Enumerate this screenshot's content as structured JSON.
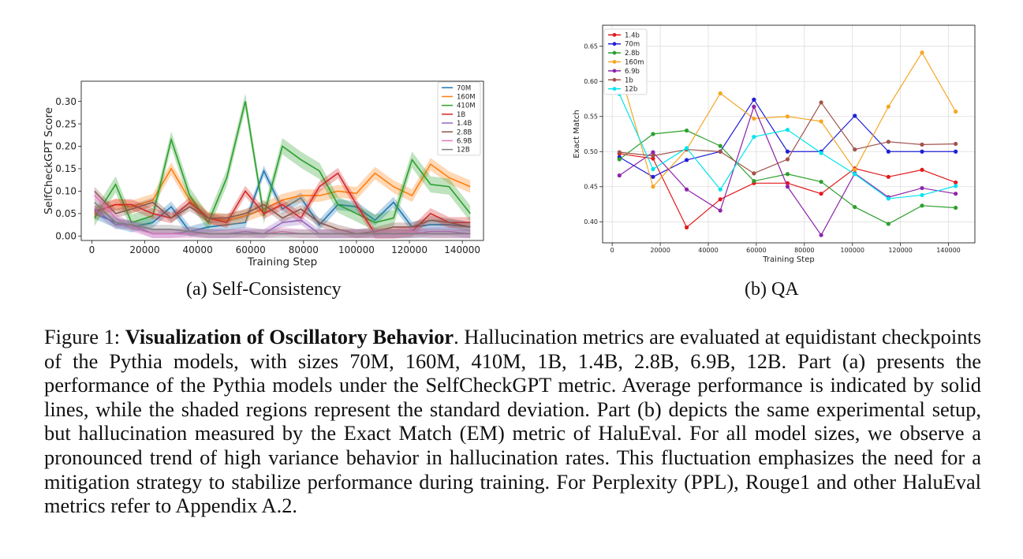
{
  "figure": {
    "subcaption_a": "(a) Self-Consistency",
    "subcaption_b": "(b) QA",
    "caption_label": "Figure 1:",
    "caption_title": "Visualization of Oscillatory Behavior",
    "caption_body": ". Hallucination metrics are evaluated at equidistant checkpoints of the Pythia models, with sizes 70M, 160M, 410M, 1B, 1.4B, 2.8B, 6.9B, 12B. Part (a) presents the performance of the Pythia models under the SelfCheckGPT metric. Average performance is indicated by solid lines, while the shaded regions represent the standard deviation. Part (b) depicts the same experimental setup, but hallucination measured by the Exact Match (EM) metric of HaluEval. For all model sizes, we observe a pronounced trend of high variance behavior in hallucination rates. This fluctuation emphasizes the need for a mitigation strategy to stabilize performance during training. For Perplexity (PPL), Rouge1 and other HaluEval metrics refer to Appendix A.2."
  },
  "chart_data": [
    {
      "type": "line",
      "xlabel": "Training Step",
      "ylabel": "SelfCheckGPT Score",
      "xlim": [
        -4000,
        148000
      ],
      "ylim": [
        -0.01,
        0.345
      ],
      "xticks": [
        0,
        20000,
        40000,
        60000,
        80000,
        100000,
        120000,
        140000
      ],
      "yticks": [
        0.0,
        0.05,
        0.1,
        0.15,
        0.2,
        0.25,
        0.3
      ],
      "ytick_labels": [
        "0.00",
        "0.05",
        "0.10",
        "0.15",
        "0.20",
        "0.25",
        "0.30"
      ],
      "grid": false,
      "legend": "top-right",
      "shaded_std": true,
      "x": [
        1000,
        9000,
        15000,
        23000,
        30000,
        37000,
        44000,
        51000,
        58000,
        65000,
        72000,
        79000,
        86000,
        93000,
        100000,
        107000,
        114000,
        121000,
        128000,
        135000,
        143000
      ],
      "series": [
        {
          "name": "70M",
          "color": "#1f77b4",
          "std": 0.012,
          "values": [
            0.05,
            0.03,
            0.02,
            0.03,
            0.065,
            0.01,
            0.02,
            0.025,
            0.03,
            0.145,
            0.06,
            0.085,
            0.025,
            0.07,
            0.065,
            0.035,
            0.075,
            0.02,
            0.025,
            0.025,
            0.02
          ]
        },
        {
          "name": "160M",
          "color": "#ff7f0e",
          "std": 0.014,
          "values": [
            0.05,
            0.07,
            0.065,
            0.08,
            0.15,
            0.08,
            0.04,
            0.035,
            0.045,
            0.06,
            0.08,
            0.09,
            0.09,
            0.1,
            0.095,
            0.14,
            0.11,
            0.09,
            0.16,
            0.13,
            0.11
          ]
        },
        {
          "name": "410M",
          "color": "#2ca02c",
          "std": 0.018,
          "values": [
            0.04,
            0.115,
            0.03,
            0.045,
            0.215,
            0.09,
            0.03,
            0.13,
            0.3,
            0.045,
            0.2,
            0.17,
            0.145,
            0.07,
            0.05,
            0.03,
            0.04,
            0.17,
            0.115,
            0.11,
            0.05
          ]
        },
        {
          "name": "1B",
          "color": "#d62728",
          "std": 0.012,
          "values": [
            0.055,
            0.07,
            0.07,
            0.05,
            0.04,
            0.075,
            0.04,
            0.03,
            0.1,
            0.05,
            0.07,
            0.04,
            0.11,
            0.14,
            0.07,
            0.005,
            0.005,
            0.01,
            0.05,
            0.03,
            0.03
          ]
        },
        {
          "name": "1.4B",
          "color": "#9467bd",
          "std": 0.01,
          "values": [
            0.06,
            0.025,
            0.025,
            0.005,
            0.005,
            0.01,
            0.005,
            0.005,
            0.01,
            0.005,
            0.03,
            0.035,
            0.005,
            0.005,
            0.005,
            0.005,
            0.005,
            0.005,
            0.01,
            0.01,
            0.005
          ]
        },
        {
          "name": "2.8B",
          "color": "#8c564b",
          "std": 0.01,
          "values": [
            0.1,
            0.05,
            0.06,
            0.075,
            0.04,
            0.065,
            0.04,
            0.04,
            0.05,
            0.07,
            0.04,
            0.06,
            0.03,
            0.015,
            0.005,
            0.01,
            0.02,
            0.02,
            0.035,
            0.03,
            0.02
          ]
        },
        {
          "name": "6.9B",
          "color": "#e377c2",
          "std": 0.01,
          "values": [
            0.09,
            0.04,
            0.02,
            0.005,
            0.005,
            0.005,
            0.005,
            0.005,
            0.005,
            0.005,
            0.01,
            0.005,
            0.005,
            0.005,
            0.005,
            0.005,
            0.005,
            0.01,
            0.005,
            0.005,
            0.005
          ]
        },
        {
          "name": "12B",
          "color": "#7f7f7f",
          "std": 0.01,
          "values": [
            0.075,
            0.03,
            0.025,
            0.015,
            0.015,
            0.01,
            0.005,
            0.005,
            0.005,
            0.005,
            0.005,
            0.005,
            0.005,
            0.005,
            0.005,
            0.005,
            0.005,
            0.005,
            0.005,
            0.005,
            0.005
          ]
        }
      ]
    },
    {
      "type": "line",
      "xlabel": "Training Step",
      "ylabel": "Exact Match",
      "xlim": [
        -4000,
        151000
      ],
      "ylim": [
        0.37,
        0.68
      ],
      "xticks": [
        0,
        20000,
        40000,
        60000,
        80000,
        100000,
        120000,
        140000
      ],
      "yticks": [
        0.4,
        0.45,
        0.5,
        0.55,
        0.6,
        0.65
      ],
      "ytick_labels": [
        "0.40",
        "0.45",
        "0.50",
        "0.55",
        "0.60",
        "0.65"
      ],
      "grid": true,
      "legend": "top-left",
      "markers": true,
      "x": [
        3000,
        17000,
        31000,
        45000,
        59000,
        73000,
        87000,
        101000,
        115000,
        129000,
        143000
      ],
      "series": [
        {
          "name": "1.4b",
          "color": "#e31a1c",
          "values": [
            0.497,
            0.49,
            0.392,
            0.432,
            0.455,
            0.455,
            0.44,
            0.476,
            0.464,
            0.474,
            0.456
          ]
        },
        {
          "name": "70m",
          "color": "#1f1fd6",
          "values": [
            0.492,
            0.464,
            0.488,
            0.5,
            0.574,
            0.5,
            0.5,
            0.551,
            0.5,
            0.5,
            0.5
          ]
        },
        {
          "name": "2.8b",
          "color": "#2ca02c",
          "values": [
            0.489,
            0.525,
            0.53,
            0.508,
            0.458,
            0.468,
            0.457,
            0.421,
            0.397,
            0.423,
            0.42
          ]
        },
        {
          "name": "160m",
          "color": "#f5a623",
          "values": [
            0.617,
            0.45,
            0.503,
            0.583,
            0.547,
            0.55,
            0.543,
            0.474,
            0.564,
            0.641,
            0.557
          ]
        },
        {
          "name": "6.9b",
          "color": "#8e24aa",
          "values": [
            0.466,
            0.499,
            0.446,
            0.416,
            0.564,
            0.45,
            0.381,
            0.469,
            0.435,
            0.448,
            0.44
          ]
        },
        {
          "name": "1b",
          "color": "#a0524a",
          "values": [
            0.499,
            0.494,
            0.503,
            0.5,
            0.469,
            0.489,
            0.57,
            0.503,
            0.514,
            0.51,
            0.511
          ]
        },
        {
          "name": "12b",
          "color": "#00e5ee",
          "values": [
            0.582,
            0.475,
            0.505,
            0.446,
            0.521,
            0.531,
            0.498,
            0.468,
            0.433,
            0.438,
            0.451
          ]
        }
      ]
    }
  ]
}
